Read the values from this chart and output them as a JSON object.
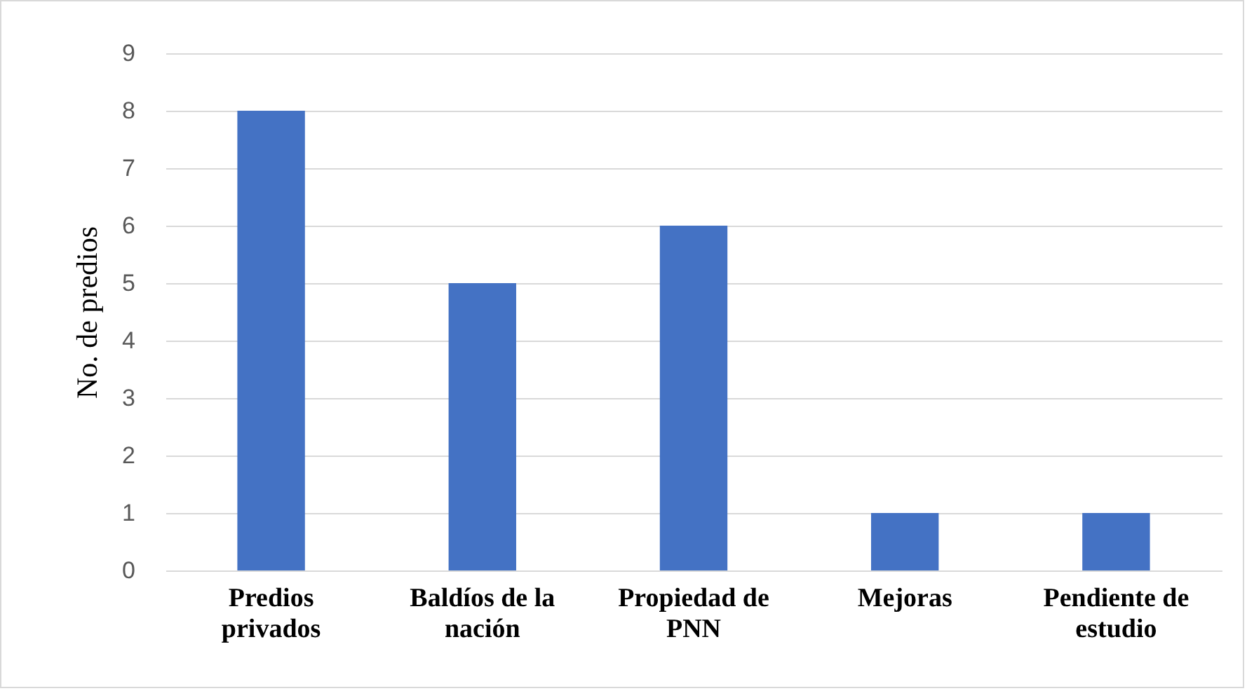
{
  "chart_data": {
    "type": "bar",
    "ylabel": "No. de predios",
    "categories": [
      "Predios privados",
      "Baldíos de la nación",
      "Propiedad de PNN",
      "Mejoras",
      "Pendiente de estudio"
    ],
    "values": [
      8,
      5,
      6,
      1,
      1
    ],
    "color": "#4472c4",
    "ylim": [
      0,
      9
    ],
    "yticks": [
      0,
      1,
      2,
      3,
      4,
      5,
      6,
      7,
      8,
      9
    ],
    "grid": true
  }
}
